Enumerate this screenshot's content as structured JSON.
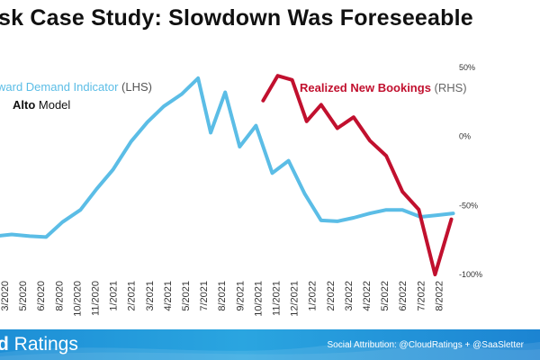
{
  "header": {
    "title": "sk Case Study: Slowdown Was Foreseeable"
  },
  "footer": {
    "brand_bold": "d",
    "brand_rest": " Ratings",
    "attribution": "Social Attribution: @CloudRatings + @SaaSletter"
  },
  "colors": {
    "lhs_line": "#5bbde6",
    "rhs_line": "#c1102e",
    "footer_bg": "#1d8fd6"
  },
  "chart_data": {
    "type": "line",
    "title": "sk Case Study: Slowdown Was Foreseeable",
    "categories": [
      "3/2020",
      "5/2020",
      "6/2020",
      "8/2020",
      "10/2020",
      "11/2020",
      "1/2021",
      "2/2021",
      "3/2021",
      "4/2021",
      "5/2021",
      "7/2021",
      "8/2021",
      "9/2021",
      "10/2021",
      "11/2021",
      "12/2021",
      "1/2022",
      "2/2022",
      "3/2022",
      "4/2022",
      "5/2022",
      "6/2022",
      "7/2022",
      "8/2022"
    ],
    "annotation_lines": [
      {
        "prefix": "ward Demand Indicator",
        "suffix": " (LHS)",
        "bold": false
      },
      {
        "prefix": "Alto",
        "suffix": " Model",
        "bold": true
      }
    ],
    "rhs_label": {
      "name": "Realized New Bookings",
      "suffix": " (RHS)"
    },
    "y_right": {
      "ticks": [
        "50%",
        "0%",
        "-50%",
        "-100%"
      ],
      "values": [
        50,
        0,
        -50,
        -100
      ],
      "range": [
        -100,
        50
      ]
    },
    "y_left_range": [
      0,
      100
    ],
    "series": [
      {
        "name": "Forward Demand Indicator (LHS)",
        "axis": "left",
        "points": [
          {
            "t": -0.5,
            "v": 9
          },
          {
            "t": 0.4,
            "v": 10
          },
          {
            "t": 1.4,
            "v": 9
          },
          {
            "t": 2.3,
            "v": 8.5
          },
          {
            "t": 3.2,
            "v": 17
          },
          {
            "t": 4.2,
            "v": 24
          },
          {
            "t": 5.1,
            "v": 36
          },
          {
            "t": 6.0,
            "v": 47
          },
          {
            "t": 7.0,
            "v": 63
          },
          {
            "t": 7.9,
            "v": 74
          },
          {
            "t": 8.8,
            "v": 83
          },
          {
            "t": 9.8,
            "v": 90
          },
          {
            "t": 10.7,
            "v": 99
          },
          {
            "t": 11.4,
            "v": 68
          },
          {
            "t": 12.2,
            "v": 91
          },
          {
            "t": 13.0,
            "v": 60
          },
          {
            "t": 13.9,
            "v": 72
          },
          {
            "t": 14.8,
            "v": 45
          },
          {
            "t": 15.7,
            "v": 52
          },
          {
            "t": 16.6,
            "v": 33
          },
          {
            "t": 17.5,
            "v": 18
          },
          {
            "t": 18.4,
            "v": 17.5
          },
          {
            "t": 19.3,
            "v": 19.5
          },
          {
            "t": 20.2,
            "v": 22
          },
          {
            "t": 21.1,
            "v": 24
          },
          {
            "t": 22.0,
            "v": 24
          },
          {
            "t": 23.0,
            "v": 20
          },
          {
            "t": 23.9,
            "v": 21
          },
          {
            "t": 24.8,
            "v": 22
          }
        ]
      },
      {
        "name": "Realized New Bookings (RHS)",
        "axis": "right",
        "points": [
          {
            "t": 14.3,
            "v": 26
          },
          {
            "t": 15.1,
            "v": 44
          },
          {
            "t": 15.9,
            "v": 41
          },
          {
            "t": 16.7,
            "v": 11
          },
          {
            "t": 17.5,
            "v": 23
          },
          {
            "t": 18.4,
            "v": 6
          },
          {
            "t": 19.3,
            "v": 14
          },
          {
            "t": 20.2,
            "v": -3
          },
          {
            "t": 21.1,
            "v": -14
          },
          {
            "t": 22.0,
            "v": -40
          },
          {
            "t": 22.9,
            "v": -53
          },
          {
            "t": 23.8,
            "v": -100
          },
          {
            "t": 24.7,
            "v": -60
          }
        ]
      }
    ]
  }
}
